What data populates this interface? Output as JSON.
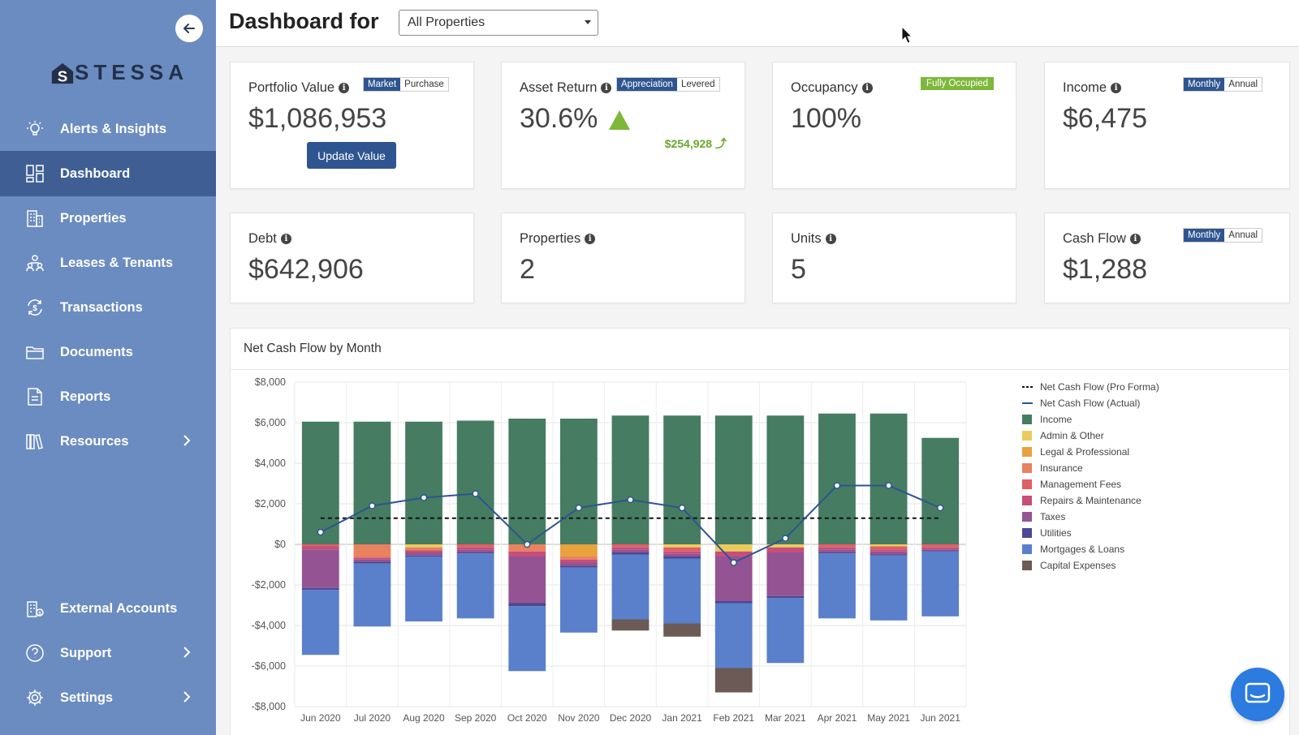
{
  "sidebar": {
    "logo": "STESSA",
    "items": [
      {
        "label": "Alerts & Insights"
      },
      {
        "label": "Dashboard"
      },
      {
        "label": "Properties"
      },
      {
        "label": "Leases & Tenants"
      },
      {
        "label": "Transactions"
      },
      {
        "label": "Documents"
      },
      {
        "label": "Reports"
      },
      {
        "label": "Resources"
      },
      {
        "label": "External Accounts"
      },
      {
        "label": "Support"
      },
      {
        "label": "Settings"
      }
    ]
  },
  "header": {
    "title": "Dashboard for",
    "property_select": "All Properties"
  },
  "cards": {
    "portfolio": {
      "title": "Portfolio Value",
      "value": "$1,086,953",
      "toggle": [
        "Market",
        "Purchase"
      ],
      "button": "Update Value"
    },
    "asset_return": {
      "title": "Asset Return",
      "value": "30.6%",
      "toggle": [
        "Appreciation",
        "Levered"
      ],
      "sub": "$254,928 ⤴"
    },
    "occupancy": {
      "title": "Occupancy",
      "value": "100%",
      "badge": "Fully Occupied"
    },
    "income": {
      "title": "Income",
      "value": "$6,475",
      "toggle": [
        "Monthly",
        "Annual"
      ]
    },
    "debt": {
      "title": "Debt",
      "value": "$642,906"
    },
    "properties": {
      "title": "Properties",
      "value": "2"
    },
    "units": {
      "title": "Units",
      "value": "5"
    },
    "cash_flow": {
      "title": "Cash Flow",
      "value": "$1,288",
      "toggle": [
        "Monthly",
        "Annual"
      ]
    }
  },
  "chart_panel_title": "Net Cash Flow by Month",
  "chart_data": {
    "type": "bar",
    "title": "Net Cash Flow by Month",
    "categories": [
      "Jun 2020",
      "Jul 2020",
      "Aug 2020",
      "Sep 2020",
      "Oct 2020",
      "Nov 2020",
      "Dec 2020",
      "Jan 2021",
      "Feb 2021",
      "Mar 2021",
      "Apr 2021",
      "May 2021",
      "Jun 2021"
    ],
    "ylim": [
      -8000,
      8000
    ],
    "yticks": [
      8000,
      6000,
      4000,
      2000,
      0,
      -2000,
      -4000,
      -6000,
      -8000
    ],
    "ytick_labels": [
      "$8,000",
      "$6,000",
      "$4,000",
      "$2,000",
      "$0",
      "-$2,000",
      "-$4,000",
      "-$6,000",
      "-$8,000"
    ],
    "stacked": true,
    "grid": true,
    "legend_position": "right",
    "series": [
      {
        "name": "Income",
        "color": "#467c62",
        "values": [
          6050,
          6050,
          6050,
          6100,
          6200,
          6200,
          6350,
          6350,
          6350,
          6350,
          6450,
          6450,
          5250
        ]
      },
      {
        "name": "Admin & Other",
        "color": "#eccb5c",
        "values": [
          0,
          0,
          -150,
          0,
          0,
          0,
          0,
          -150,
          -350,
          -150,
          0,
          -100,
          0
        ]
      },
      {
        "name": "Legal & Professional",
        "color": "#e8a23e",
        "values": [
          0,
          0,
          0,
          0,
          0,
          -600,
          0,
          0,
          0,
          0,
          0,
          0,
          0
        ]
      },
      {
        "name": "Insurance",
        "color": "#e8825f",
        "values": [
          0,
          -650,
          -150,
          0,
          -350,
          -150,
          0,
          0,
          0,
          0,
          0,
          0,
          0
        ]
      },
      {
        "name": "Management Fees",
        "color": "#e15e63",
        "values": [
          -100,
          0,
          0,
          -150,
          0,
          0,
          -150,
          -200,
          0,
          0,
          -150,
          -150,
          -150
        ]
      },
      {
        "name": "Repairs & Maintenance",
        "color": "#c64e79",
        "values": [
          -150,
          -100,
          -100,
          -100,
          -250,
          -150,
          -100,
          -100,
          -250,
          -250,
          -100,
          -100,
          -100
        ]
      },
      {
        "name": "Taxes",
        "color": "#945392",
        "values": [
          -1900,
          -100,
          -150,
          -150,
          -2300,
          -150,
          -150,
          -150,
          -2200,
          -2150,
          -150,
          -150,
          -50
        ]
      },
      {
        "name": "Utilities",
        "color": "#4c4893",
        "values": [
          -100,
          -100,
          -50,
          -50,
          -150,
          -100,
          -100,
          -100,
          -100,
          -100,
          -50,
          -50,
          -50
        ]
      },
      {
        "name": "Mortgages & Loans",
        "color": "#5a7fcb",
        "values": [
          -3200,
          -3100,
          -3200,
          -3200,
          -3200,
          -3200,
          -3200,
          -3200,
          -3200,
          -3200,
          -3200,
          -3200,
          -3200
        ]
      },
      {
        "name": "Capital Expenses",
        "color": "#6b5a55",
        "values": [
          0,
          0,
          0,
          0,
          0,
          0,
          -550,
          -650,
          -1200,
          0,
          0,
          0,
          0
        ]
      }
    ],
    "lines": [
      {
        "name": "Net Cash Flow (Pro Forma)",
        "color": "#111111",
        "dashed": true,
        "values": [
          1288,
          1288,
          1288,
          1288,
          1288,
          1288,
          1288,
          1288,
          1288,
          1288,
          1288,
          1288,
          1288
        ]
      },
      {
        "name": "Net Cash Flow (Actual)",
        "color": "#2e5590",
        "dashed": false,
        "values": [
          600,
          1900,
          2300,
          2500,
          0,
          1800,
          2200,
          1800,
          -900,
          300,
          2900,
          2900,
          1800
        ]
      }
    ],
    "legend": [
      {
        "name": "Net Cash Flow (Pro Forma)",
        "kind": "dash",
        "color": "#111111"
      },
      {
        "name": "Net Cash Flow (Actual)",
        "kind": "line",
        "color": "#2e5590"
      },
      {
        "name": "Income",
        "kind": "box",
        "color": "#467c62"
      },
      {
        "name": "Admin & Other",
        "kind": "box",
        "color": "#eccb5c"
      },
      {
        "name": "Legal & Professional",
        "kind": "box",
        "color": "#e8a23e"
      },
      {
        "name": "Insurance",
        "kind": "box",
        "color": "#e8825f"
      },
      {
        "name": "Management Fees",
        "kind": "box",
        "color": "#e15e63"
      },
      {
        "name": "Repairs & Maintenance",
        "kind": "box",
        "color": "#c64e79"
      },
      {
        "name": "Taxes",
        "kind": "box",
        "color": "#945392"
      },
      {
        "name": "Utilities",
        "kind": "box",
        "color": "#4c4893"
      },
      {
        "name": "Mortgages & Loans",
        "kind": "box",
        "color": "#5a7fcb"
      },
      {
        "name": "Capital Expenses",
        "kind": "box",
        "color": "#6b5a55"
      }
    ]
  }
}
